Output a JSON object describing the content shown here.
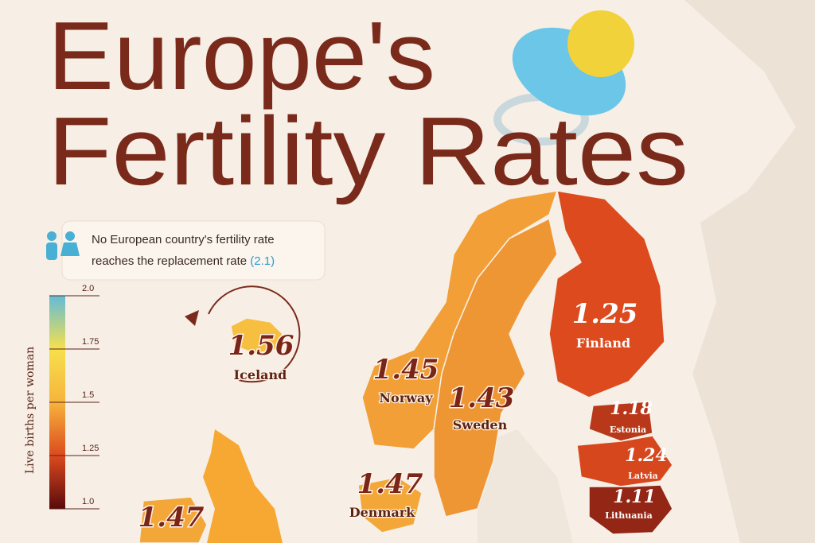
{
  "title": {
    "line1": "Europe's",
    "line2": "Fertility Rates"
  },
  "note": {
    "line1": "No European country's fertility rate",
    "line2": "reaches the replacement rate",
    "highlight": "(2.1)"
  },
  "legend": {
    "title": "Live births per woman",
    "range": [
      1,
      2
    ],
    "ticks": [
      {
        "value": 2,
        "label": "2.0"
      },
      1.75,
      1.5,
      1.25,
      {
        "value": 1,
        "label": "1.0"
      }
    ],
    "colors": [
      "#62bcd8",
      "#f6e04c",
      "#f6b43c",
      "#dc4a1e",
      "#5a0a0c"
    ]
  },
  "regions": [
    {
      "name": "Iceland",
      "value": 1.56
    },
    {
      "name": "Norway",
      "value": 1.45
    },
    {
      "name": "Sweden",
      "value": 1.43
    },
    {
      "name": "Finland",
      "value": 1.25
    },
    {
      "name": "Estonia",
      "value": 1.18
    },
    {
      "name": "Latvia",
      "value": 1.24
    },
    {
      "name": "Lithuania",
      "value": 1.11
    },
    {
      "name": "Denmark",
      "value": 1.47
    },
    {
      "value": 1.47
    }
  ]
}
